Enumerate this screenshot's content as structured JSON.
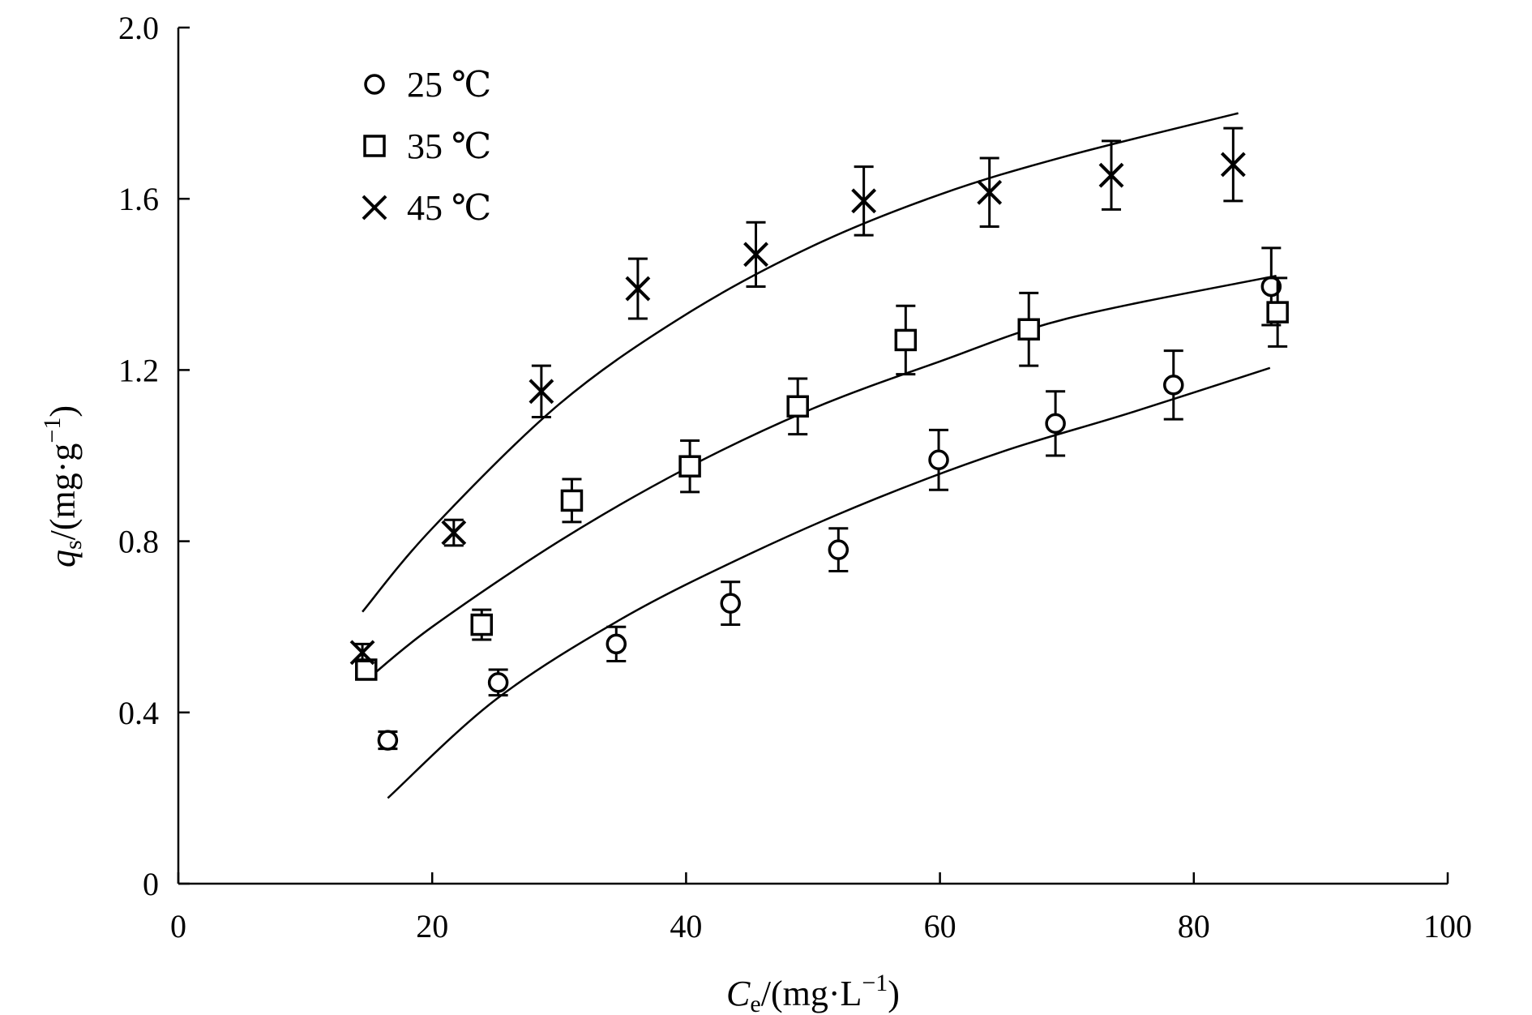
{
  "chart_data": {
    "type": "scatter",
    "xlabel": {
      "main": "C",
      "sub": "e",
      "rest": "/(mg·L",
      "sup": "−1",
      "close": ")"
    },
    "ylabel": {
      "main": "q",
      "sub": "s",
      "rest": "/(mg·g",
      "sup": "−1",
      "close": ")"
    },
    "xlim": [
      0,
      100
    ],
    "ylim": [
      0,
      2.0
    ],
    "xticks": [
      0,
      20,
      40,
      60,
      80,
      100
    ],
    "xtick_labels": [
      "0",
      "20",
      "40",
      "60",
      "80",
      "100"
    ],
    "yticks": [
      0,
      0.4,
      0.8,
      1.2,
      1.6,
      2.0
    ],
    "ytick_labels": [
      "0",
      "0.4",
      "0.8",
      "1.2",
      "1.6",
      "2.0"
    ],
    "grid": false,
    "legend_position": "top-left",
    "series": [
      {
        "name": "25 ℃",
        "marker": "circle",
        "points": [
          {
            "x": 16.5,
            "y": 0.335,
            "err": 0.02
          },
          {
            "x": 25.2,
            "y": 0.47,
            "err": 0.03
          },
          {
            "x": 34.5,
            "y": 0.56,
            "err": 0.04
          },
          {
            "x": 43.5,
            "y": 0.655,
            "err": 0.05
          },
          {
            "x": 52.0,
            "y": 0.78,
            "err": 0.05
          },
          {
            "x": 59.9,
            "y": 0.99,
            "err": 0.07
          },
          {
            "x": 69.1,
            "y": 1.075,
            "err": 0.075
          },
          {
            "x": 78.4,
            "y": 1.165,
            "err": 0.08
          },
          {
            "x": 86.1,
            "y": 1.395,
            "err": 0.09
          }
        ],
        "fit": [
          {
            "x": 16.5,
            "y": 0.2
          },
          {
            "x": 25.0,
            "y": 0.43
          },
          {
            "x": 35.0,
            "y": 0.62
          },
          {
            "x": 45.0,
            "y": 0.77
          },
          {
            "x": 55.0,
            "y": 0.9
          },
          {
            "x": 65.0,
            "y": 1.01
          },
          {
            "x": 75.0,
            "y": 1.1
          },
          {
            "x": 86.0,
            "y": 1.205
          }
        ]
      },
      {
        "name": "35 ℃",
        "marker": "square",
        "points": [
          {
            "x": 14.8,
            "y": 0.5,
            "err": 0.02
          },
          {
            "x": 23.9,
            "y": 0.605,
            "err": 0.035
          },
          {
            "x": 31.0,
            "y": 0.895,
            "err": 0.05
          },
          {
            "x": 40.3,
            "y": 0.975,
            "err": 0.06
          },
          {
            "x": 48.8,
            "y": 1.115,
            "err": 0.065
          },
          {
            "x": 57.3,
            "y": 1.27,
            "err": 0.08
          },
          {
            "x": 67.0,
            "y": 1.295,
            "err": 0.085
          },
          {
            "x": 86.6,
            "y": 1.335,
            "err": 0.08
          }
        ],
        "fit": [
          {
            "x": 15.0,
            "y": 0.48
          },
          {
            "x": 20.0,
            "y": 0.6
          },
          {
            "x": 30.0,
            "y": 0.8
          },
          {
            "x": 40.0,
            "y": 0.97
          },
          {
            "x": 50.0,
            "y": 1.11
          },
          {
            "x": 60.0,
            "y": 1.22
          },
          {
            "x": 70.0,
            "y": 1.32
          },
          {
            "x": 86.5,
            "y": 1.42
          }
        ]
      },
      {
        "name": "45 ℃",
        "marker": "cross",
        "points": [
          {
            "x": 14.5,
            "y": 0.54,
            "err": 0.02
          },
          {
            "x": 21.7,
            "y": 0.82,
            "err": 0.03
          },
          {
            "x": 28.6,
            "y": 1.15,
            "err": 0.06
          },
          {
            "x": 36.2,
            "y": 1.39,
            "err": 0.07
          },
          {
            "x": 45.5,
            "y": 1.47,
            "err": 0.075
          },
          {
            "x": 54.0,
            "y": 1.595,
            "err": 0.08
          },
          {
            "x": 63.9,
            "y": 1.615,
            "err": 0.08
          },
          {
            "x": 73.5,
            "y": 1.655,
            "err": 0.08
          },
          {
            "x": 83.1,
            "y": 1.68,
            "err": 0.085
          }
        ],
        "fit": [
          {
            "x": 14.5,
            "y": 0.635
          },
          {
            "x": 20.0,
            "y": 0.83
          },
          {
            "x": 30.0,
            "y": 1.12
          },
          {
            "x": 40.0,
            "y": 1.33
          },
          {
            "x": 50.0,
            "y": 1.49
          },
          {
            "x": 60.0,
            "y": 1.61
          },
          {
            "x": 70.0,
            "y": 1.7
          },
          {
            "x": 83.5,
            "y": 1.8
          }
        ]
      }
    ]
  }
}
